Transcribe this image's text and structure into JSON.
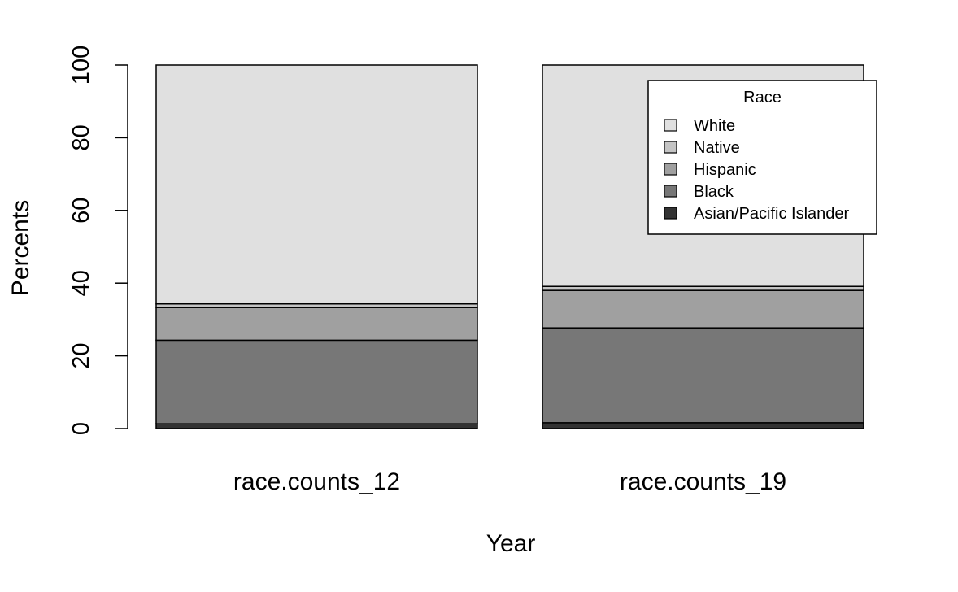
{
  "chart_data": {
    "type": "bar",
    "stacked": true,
    "title": "",
    "xlabel": "Year",
    "ylabel": "Percents",
    "ylim": [
      0,
      100
    ],
    "yticks": [
      0,
      20,
      40,
      60,
      80,
      100
    ],
    "categories": [
      "race.counts_12",
      "race.counts_19"
    ],
    "series": [
      {
        "name": "Asian/Pacific Islander",
        "color": "#333333",
        "values": [
          1.3,
          1.6
        ]
      },
      {
        "name": "Black",
        "color": "#777777",
        "values": [
          23.0,
          26.1
        ]
      },
      {
        "name": "Hispanic",
        "color": "#a0a0a0",
        "values": [
          9.0,
          10.3
        ]
      },
      {
        "name": "Native",
        "color": "#c4c4c4",
        "values": [
          1.0,
          1.1
        ]
      },
      {
        "name": "White",
        "color": "#e0e0e0",
        "values": [
          65.7,
          60.9
        ]
      }
    ],
    "legend": {
      "title": "Race",
      "placement": "top-right",
      "order": [
        "White",
        "Native",
        "Hispanic",
        "Black",
        "Asian/Pacific Islander"
      ]
    },
    "grid": false
  }
}
